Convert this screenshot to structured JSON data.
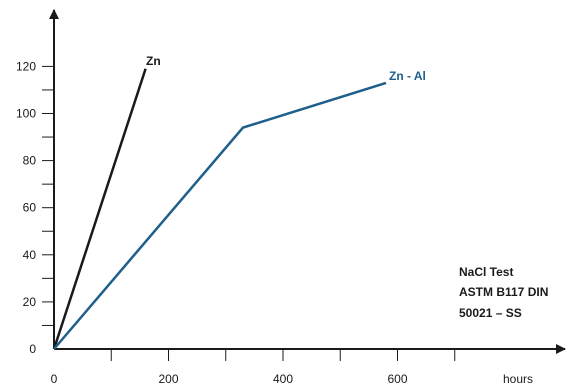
{
  "chart_data": {
    "type": "line",
    "xlabel": "hours",
    "ylabel": "",
    "xlim": [
      0,
      800
    ],
    "ylim": [
      0,
      140
    ],
    "x_ticks": [
      0,
      200,
      400,
      600
    ],
    "x_minor_ticks": [
      100,
      200,
      300,
      400,
      500,
      600,
      700
    ],
    "y_ticks": [
      0,
      20,
      40,
      60,
      80,
      100,
      120
    ],
    "y_minor_ticks": [
      10,
      20,
      30,
      40,
      50,
      60,
      70,
      80,
      90,
      100,
      110,
      120
    ],
    "grid": false,
    "legend": "none",
    "series": [
      {
        "name": "Zn",
        "color": "#1a1a1a",
        "x": [
          0,
          160
        ],
        "y": [
          0,
          119
        ]
      },
      {
        "name": "Zn - Al",
        "color": "#1f5f8b",
        "x": [
          0,
          330,
          580
        ],
        "y": [
          0,
          94,
          113
        ]
      }
    ],
    "annotation": [
      "NaCl  Test",
      "ASTM B117 DIN",
      "50021 – SS"
    ]
  }
}
